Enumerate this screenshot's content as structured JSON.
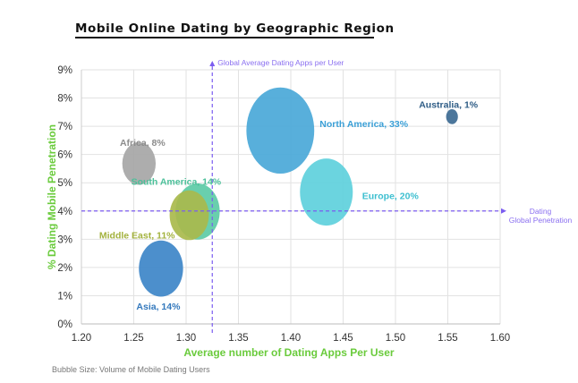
{
  "chart_data": {
    "type": "bubble",
    "title": "Mobile Online Dating by Geographic Region",
    "xlabel": "Average number of Dating Apps Per User",
    "ylabel": "% Dating Mobile Penetration",
    "xlim": [
      1.2,
      1.6
    ],
    "ylim": [
      0,
      9
    ],
    "xticks": [
      "1.20",
      "1.25",
      "1.30",
      "1.35",
      "1.40",
      "1.45",
      "1.50",
      "1.55",
      "1.60"
    ],
    "yticks": [
      "0%",
      "1%",
      "2%",
      "3%",
      "4%",
      "5%",
      "6%",
      "7%",
      "8%",
      "9%"
    ],
    "grid": true,
    "footnote": "Bubble Size: Volume of Mobile Dating Users",
    "reference_lines": {
      "vertical": {
        "x": 1.325,
        "label": "Global Average Dating Apps per User"
      },
      "horizontal": {
        "y": 4.0,
        "label_line1": "Dating",
        "label_line2": "Global Penetration"
      }
    },
    "points": [
      {
        "label": "North America, 33%",
        "x": 1.39,
        "y": 6.85,
        "size": 33,
        "color": "#4aa8d8",
        "label_color": "#3a9fd6"
      },
      {
        "label": "Australia, 1%",
        "x": 1.554,
        "y": 7.34,
        "size": 1,
        "color": "#3d6a92",
        "label_color": "#2f5d86"
      },
      {
        "label": "Africa, 8%",
        "x": 1.255,
        "y": 5.68,
        "size": 8,
        "color": "#a6a6a6",
        "label_color": "#8c8c8c"
      },
      {
        "label": "Europe, 20%",
        "x": 1.434,
        "y": 4.67,
        "size": 20,
        "color": "#5ed0dc",
        "label_color": "#3dbfd0"
      },
      {
        "label": "South America, 14%",
        "x": 1.311,
        "y": 3.98,
        "size": 14,
        "color": "#5ccba6",
        "label_color": "#4cc09a"
      },
      {
        "label": "Middle East, 11%",
        "x": 1.303,
        "y": 3.85,
        "size": 11,
        "color": "#a9ba4c",
        "label_color": "#a3b23e"
      },
      {
        "label": "Asia, 14%",
        "x": 1.276,
        "y": 1.96,
        "size": 14,
        "color": "#3d85c8",
        "label_color": "#3479bd"
      }
    ]
  }
}
